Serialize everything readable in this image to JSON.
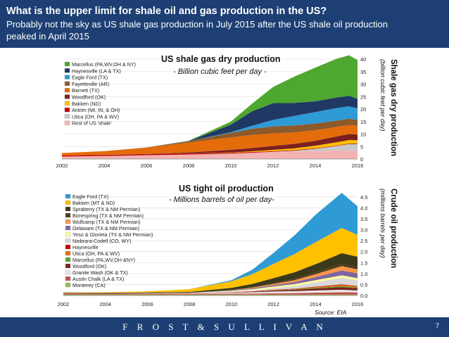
{
  "header": {
    "title": "What is the upper limit for shale oil and gas production in the US?",
    "subtitle": "Probably not the sky as US shale gas production in July 2015 after the US shale oil production peaked in April 2015"
  },
  "footer": {
    "brand": "F R O S T  &  S U L L I V A N",
    "page": "7"
  },
  "source": "Source: EIA",
  "colors": {
    "header_bg": "#1d3f73"
  },
  "chart_data": [
    {
      "type": "area",
      "stacked": true,
      "title": "US shale gas dry production",
      "unit_label": "- Billion cubic feet per day -",
      "ylabel": "Shale gas dry production",
      "ylabel_sub": "(billion cubic feet per day)",
      "xlim": [
        2002,
        2016
      ],
      "ylim": [
        0,
        40
      ],
      "x_ticks": [
        "2002",
        "2004",
        "2006",
        "2008",
        "2010",
        "2012",
        "2014",
        "2016"
      ],
      "y_ticks": [
        "0",
        "5",
        "10",
        "15",
        "20",
        "25",
        "30",
        "35",
        "40"
      ],
      "legend_position": "top-left",
      "x": [
        2002,
        2004,
        2006,
        2008,
        2010,
        2011,
        2012,
        2013,
        2014,
        2015,
        2015.6,
        2016
      ],
      "series": [
        {
          "name": "Rest of US 'shale'",
          "color": "#f4b3b3",
          "values": [
            1.0,
            1.2,
            1.5,
            1.8,
            2.2,
            2.5,
            2.8,
            3.0,
            3.2,
            3.4,
            3.5,
            3.4
          ]
        },
        {
          "name": "Utica (OH, PA & WV)",
          "color": "#c8c8c8",
          "values": [
            0,
            0,
            0,
            0,
            0,
            0,
            0.1,
            0.3,
            0.9,
            1.8,
            2.5,
            2.6
          ]
        },
        {
          "name": "Antrim (MI, IN, & OH)",
          "color": "#c00000",
          "values": [
            0.4,
            0.4,
            0.4,
            0.35,
            0.3,
            0.3,
            0.25,
            0.25,
            0.2,
            0.2,
            0.2,
            0.2
          ]
        },
        {
          "name": "Bakken (ND)",
          "color": "#ffc000",
          "values": [
            0,
            0,
            0,
            0.05,
            0.15,
            0.3,
            0.5,
            0.7,
            1.0,
            1.3,
            1.4,
            1.3
          ]
        },
        {
          "name": "Woodford (OK)",
          "color": "#7b1f1f",
          "values": [
            0,
            0.05,
            0.1,
            0.4,
            1.0,
            1.3,
            1.6,
            1.8,
            2.0,
            2.3,
            2.4,
            2.3
          ]
        },
        {
          "name": "Barnett (TX)",
          "color": "#e46c0a",
          "values": [
            1.0,
            1.5,
            2.5,
            4.0,
            5.0,
            5.2,
            5.0,
            4.6,
            4.2,
            3.8,
            3.6,
            3.5
          ]
        },
        {
          "name": "Fayetteville (AR)",
          "color": "#8c5a2b",
          "values": [
            0,
            0,
            0.1,
            0.5,
            1.8,
            2.5,
            2.8,
            2.8,
            2.7,
            2.6,
            2.5,
            2.4
          ]
        },
        {
          "name": "Eagle Ford (TX)",
          "color": "#2e9bd6",
          "values": [
            0,
            0,
            0,
            0,
            0.3,
            1.2,
            2.6,
            3.8,
            4.6,
            5.0,
            5.0,
            4.6
          ]
        },
        {
          "name": "Haynesville (LA & TX)",
          "color": "#1f3864",
          "values": [
            0,
            0,
            0,
            0.1,
            3.0,
            5.8,
            6.7,
            5.2,
            4.3,
            4.2,
            4.2,
            3.8
          ]
        },
        {
          "name": "Marcellus (PA,WV,OH & NY)",
          "color": "#4ea72e",
          "values": [
            0,
            0,
            0,
            0.1,
            1.2,
            3.0,
            6.5,
            10.5,
            13.5,
            15.5,
            16.2,
            15.5
          ]
        }
      ]
    },
    {
      "type": "area",
      "stacked": true,
      "title": "US tight oil production",
      "unit_label": "- Millions barrels of oil per day-",
      "ylabel": "Crude oil production",
      "ylabel_sub": "(millions barrels per day)",
      "xlim": [
        2002,
        2016
      ],
      "ylim": [
        0,
        4.75
      ],
      "x_ticks": [
        "2002",
        "2004",
        "2006",
        "2008",
        "2010",
        "2012",
        "2014",
        "2016"
      ],
      "y_ticks": [
        "0.0",
        "0.5",
        "1.0",
        "1.5",
        "2.0",
        "2.5",
        "3.0",
        "3.5",
        "4.0",
        "4.5"
      ],
      "legend_position": "top-left",
      "x": [
        2002,
        2004,
        2006,
        2008,
        2010,
        2011,
        2012,
        2013,
        2014,
        2015.25,
        2016
      ],
      "series": [
        {
          "name": "Monterey (CA)",
          "color": "#9bbb59",
          "values": [
            0.05,
            0.05,
            0.04,
            0.04,
            0.04,
            0.04,
            0.04,
            0.04,
            0.04,
            0.04,
            0.04
          ]
        },
        {
          "name": "Austin Chalk (LA & TX)",
          "color": "#c0504d",
          "values": [
            0.06,
            0.05,
            0.05,
            0.05,
            0.05,
            0.05,
            0.06,
            0.07,
            0.09,
            0.11,
            0.1
          ]
        },
        {
          "name": "Granite Wash (OK & TX)",
          "color": "#e8e8e8",
          "values": [
            0.01,
            0.01,
            0.02,
            0.03,
            0.04,
            0.06,
            0.08,
            0.09,
            0.1,
            0.11,
            0.09
          ]
        },
        {
          "name": "Woodford (OK)",
          "color": "#7b1f1f",
          "values": [
            0,
            0,
            0,
            0,
            0.01,
            0.02,
            0.04,
            0.06,
            0.09,
            0.12,
            0.1
          ]
        },
        {
          "name": "Marcellus (PA,WV,OH &NY)",
          "color": "#4ea72e",
          "values": [
            0,
            0,
            0,
            0,
            0,
            0,
            0.01,
            0.02,
            0.03,
            0.04,
            0.03
          ]
        },
        {
          "name": "Utica (OH, PA & WV)",
          "color": "#e46c0a",
          "values": [
            0,
            0,
            0,
            0,
            0,
            0,
            0.01,
            0.01,
            0.03,
            0.06,
            0.05
          ]
        },
        {
          "name": "Haynesville",
          "color": "#c00000",
          "values": [
            0,
            0,
            0,
            0,
            0.01,
            0.02,
            0.02,
            0.02,
            0.02,
            0.03,
            0.02
          ]
        },
        {
          "name": "Niobrara-Codell (CO, WY)",
          "color": "#d9d9d9",
          "values": [
            0,
            0,
            0,
            0,
            0.03,
            0.05,
            0.08,
            0.12,
            0.2,
            0.3,
            0.26
          ]
        },
        {
          "name": "Yeso & Glorieta (TX & NM Permian)",
          "color": "#ffff99",
          "values": [
            0,
            0,
            0,
            0,
            0.03,
            0.05,
            0.07,
            0.09,
            0.1,
            0.11,
            0.1
          ]
        },
        {
          "name": "Delaware (TX & NM Permian)",
          "color": "#8064a2",
          "values": [
            0,
            0,
            0,
            0,
            0.02,
            0.04,
            0.06,
            0.09,
            0.14,
            0.22,
            0.22
          ]
        },
        {
          "name": "Wolfcamp (TX & NM Permian)",
          "color": "#f79646",
          "values": [
            0,
            0,
            0,
            0,
            0.01,
            0.03,
            0.06,
            0.09,
            0.13,
            0.2,
            0.18
          ]
        },
        {
          "name": "Bonespring (TX & NM Permian)",
          "color": "#4f3b1a",
          "values": [
            0,
            0,
            0,
            0,
            0.01,
            0.02,
            0.04,
            0.06,
            0.08,
            0.11,
            0.1
          ]
        },
        {
          "name": "Spraberry (TX & NM Permian)",
          "color": "#3a3a1a",
          "values": [
            0.02,
            0.02,
            0.03,
            0.04,
            0.1,
            0.15,
            0.22,
            0.3,
            0.38,
            0.48,
            0.48
          ]
        },
        {
          "name": "Bakken (MT & ND)",
          "color": "#ffc000",
          "values": [
            0.01,
            0.02,
            0.05,
            0.13,
            0.3,
            0.45,
            0.65,
            0.83,
            1.0,
            1.15,
            1.0
          ]
        },
        {
          "name": "Eagle Ford (TX)",
          "color": "#2e9bd6",
          "values": [
            0,
            0,
            0,
            0,
            0.05,
            0.2,
            0.5,
            0.85,
            1.25,
            1.6,
            1.3
          ]
        }
      ]
    }
  ]
}
